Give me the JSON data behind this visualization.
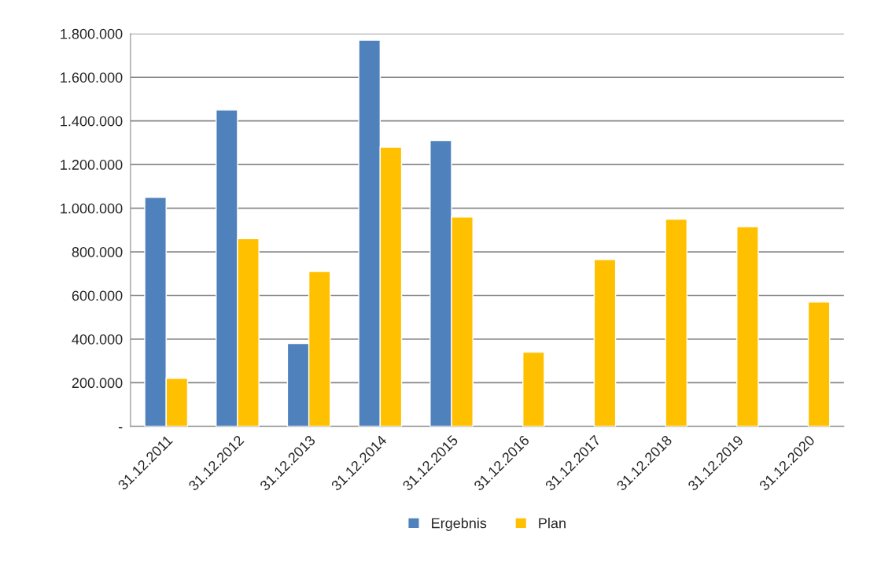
{
  "chart_data": {
    "type": "bar",
    "categories": [
      "31.12.2011",
      "31.12.2012",
      "31.12.2013",
      "31.12.2014",
      "31.12.2015",
      "31.12.2016",
      "31.12.2017",
      "31.12.2018",
      "31.12.2019",
      "31.12.2020"
    ],
    "series": [
      {
        "name": "Ergebnis",
        "color": "#4f81bd",
        "values": [
          1050000,
          1450000,
          380000,
          1770000,
          1310000,
          null,
          null,
          null,
          null,
          null
        ]
      },
      {
        "name": "Plan",
        "color": "#ffc000",
        "values": [
          220000,
          860000,
          710000,
          1280000,
          960000,
          340000,
          765000,
          950000,
          915000,
          570000
        ]
      }
    ],
    "ylim": [
      0,
      1800000
    ],
    "yticks": [
      {
        "value": 0,
        "label": "-"
      },
      {
        "value": 200000,
        "label": "200.000"
      },
      {
        "value": 400000,
        "label": "400.000"
      },
      {
        "value": 600000,
        "label": "600.000"
      },
      {
        "value": 800000,
        "label": "800.000"
      },
      {
        "value": 1000000,
        "label": "1.000.000"
      },
      {
        "value": 1200000,
        "label": "1.200.000"
      },
      {
        "value": 1400000,
        "label": "1.400.000"
      },
      {
        "value": 1600000,
        "label": "1.600.000"
      },
      {
        "value": 1800000,
        "label": "1.800.000"
      }
    ],
    "grid": "y",
    "legend": "bottom"
  }
}
